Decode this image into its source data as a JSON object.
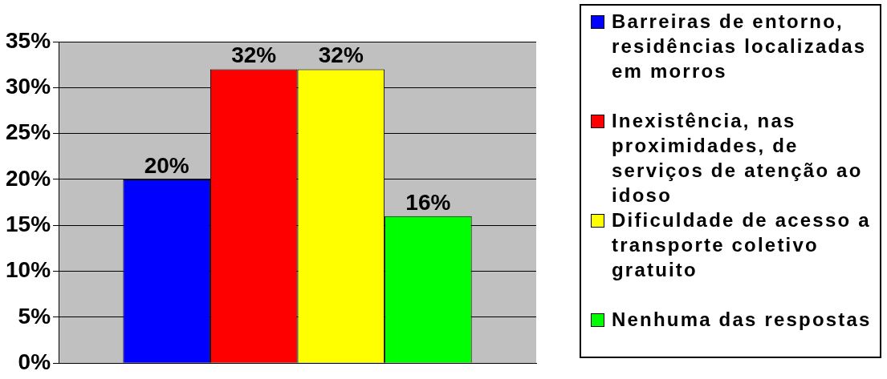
{
  "chart_data": {
    "type": "bar",
    "categories": [
      null
    ],
    "series": [
      {
        "name": "Barreiras de entorno, residências localizadas em morros",
        "color": "#0000ff",
        "values": [
          20
        ],
        "value_labels": [
          "20%"
        ]
      },
      {
        "name": "Inexistência, nas proximidades, de serviços de atenção ao idoso",
        "color": "#ff0000",
        "values": [
          32
        ],
        "value_labels": [
          "32%"
        ]
      },
      {
        "name": "Dificuldade de acesso a transporte coletivo gratuito",
        "color": "#ffff00",
        "values": [
          32
        ],
        "value_labels": [
          "32%"
        ]
      },
      {
        "name": "Nenhuma das respostas",
        "color": "#00ff00",
        "values": [
          16
        ],
        "value_labels": [
          "16%"
        ]
      }
    ],
    "ylim": [
      0,
      35
    ],
    "yticks": [
      {
        "value": 0,
        "label": "0%"
      },
      {
        "value": 5,
        "label": "5%"
      },
      {
        "value": 10,
        "label": "10%"
      },
      {
        "value": 15,
        "label": "15%"
      },
      {
        "value": 20,
        "label": "20%"
      },
      {
        "value": 25,
        "label": "25%"
      },
      {
        "value": 30,
        "label": "30%"
      },
      {
        "value": 35,
        "label": "35%"
      }
    ],
    "grid": "y",
    "legend": "right"
  }
}
